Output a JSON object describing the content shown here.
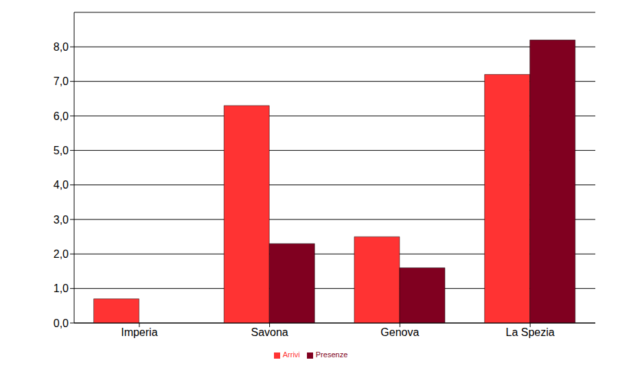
{
  "chart_data": {
    "type": "bar",
    "categories": [
      "Imperia",
      "Savona",
      "Genova",
      "La Spezia"
    ],
    "series": [
      {
        "name": "Arrivi",
        "color": "#ff3333",
        "values": [
          0.7,
          6.3,
          2.5,
          7.2
        ]
      },
      {
        "name": "Presenze",
        "color": "#800020",
        "values": [
          0.0,
          2.3,
          1.6,
          8.2
        ]
      }
    ],
    "ylim": [
      0,
      9
    ],
    "yticks": [
      {
        "value": 0,
        "label": "0,0"
      },
      {
        "value": 1,
        "label": "1,0"
      },
      {
        "value": 2,
        "label": "2,0"
      },
      {
        "value": 3,
        "label": "3,0"
      },
      {
        "value": 4,
        "label": "4,0"
      },
      {
        "value": 5,
        "label": "5,0"
      },
      {
        "value": 6,
        "label": "6,0"
      },
      {
        "value": 7,
        "label": "7,0"
      },
      {
        "value": 8,
        "label": "8,0"
      }
    ],
    "grid": true,
    "legend": "bottom"
  }
}
